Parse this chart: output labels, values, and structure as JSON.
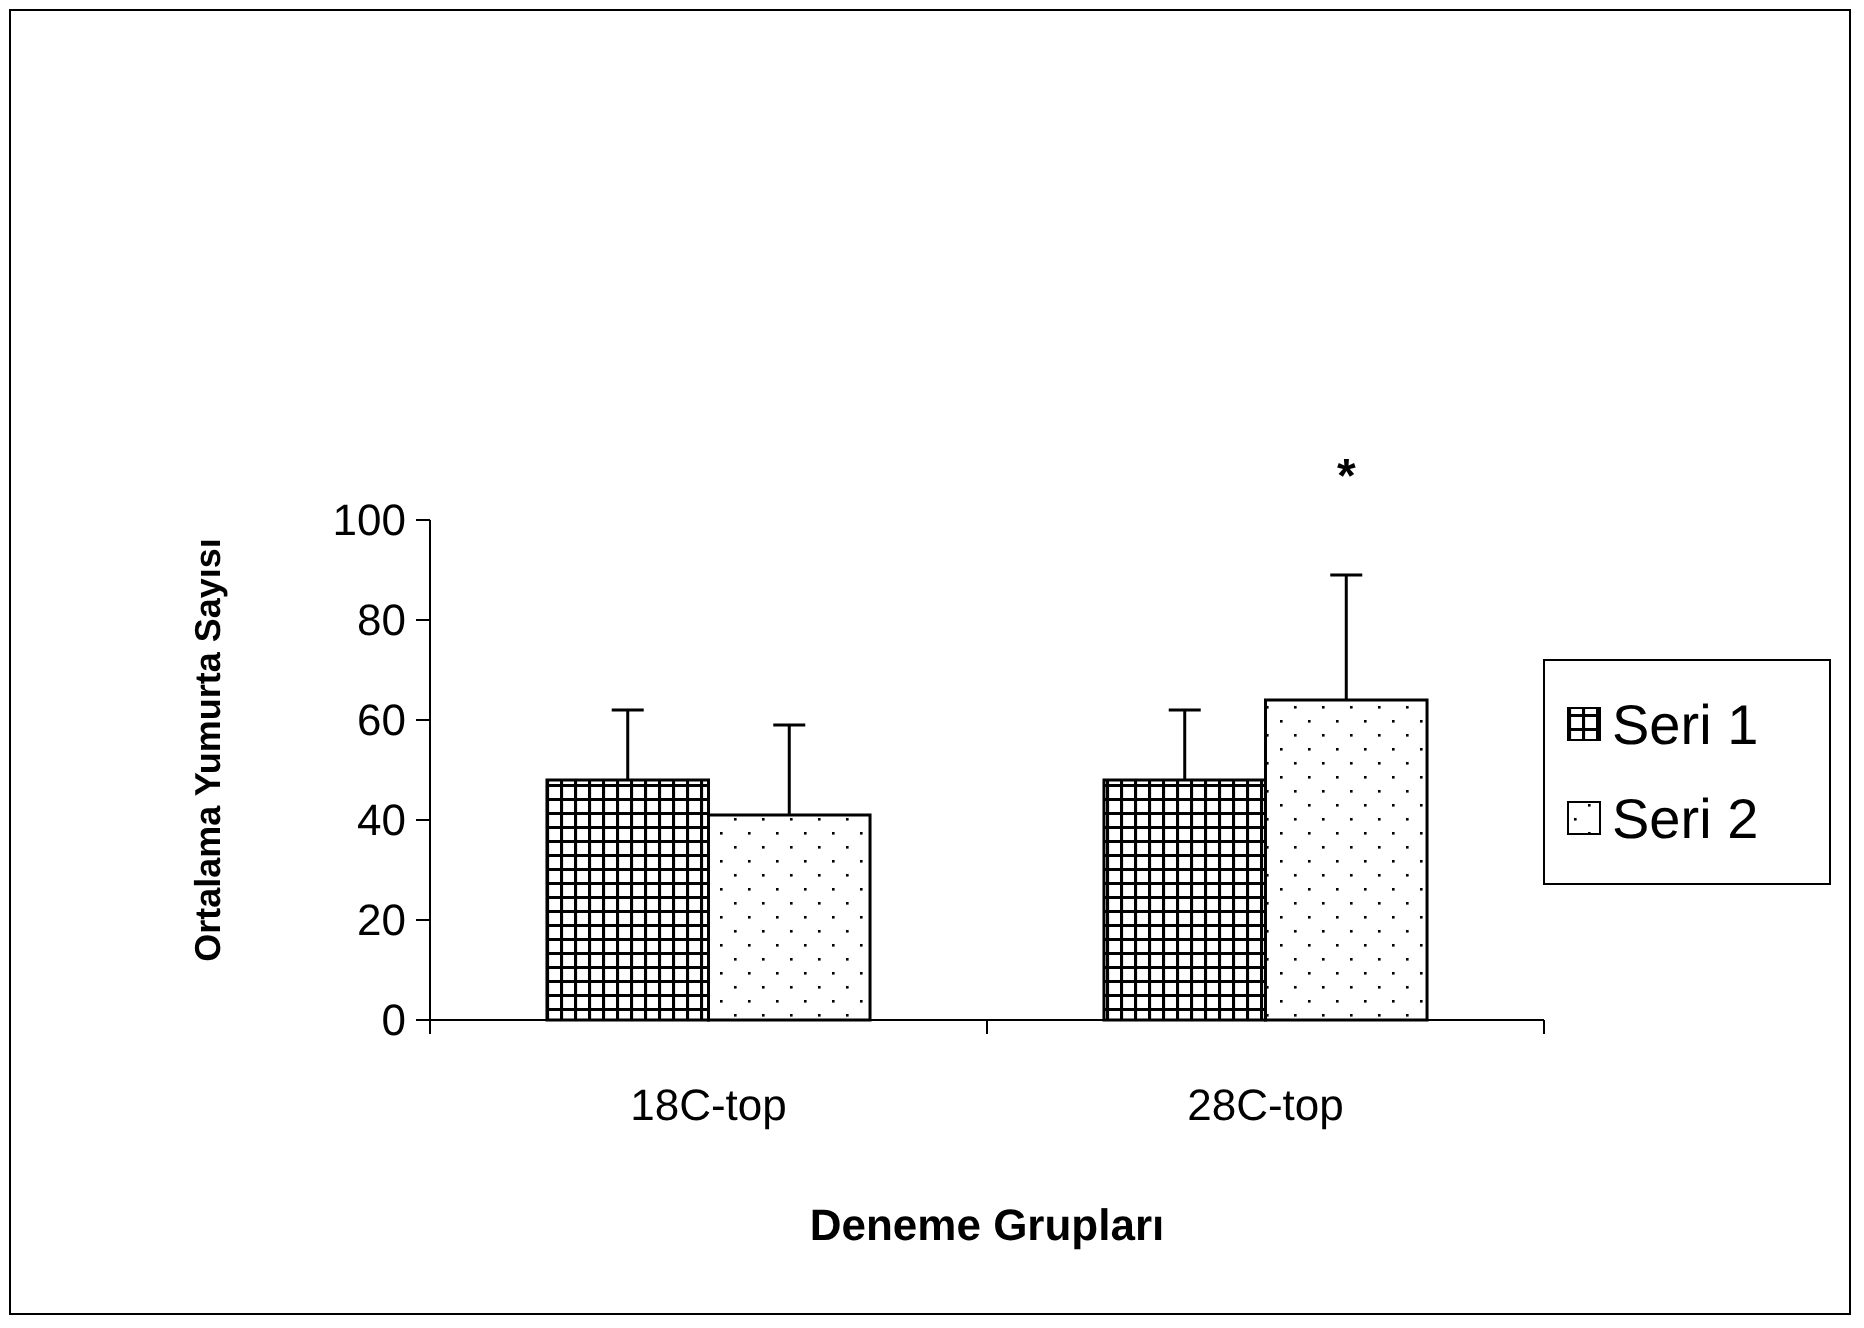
{
  "chart_data": {
    "type": "bar",
    "xlabel": "Deneme Grupları",
    "ylabel": "Ortalama Yumurta Sayısı",
    "categories": [
      "18C-top",
      "28C-top"
    ],
    "series": [
      {
        "name": "Seri 1",
        "color": "#000000",
        "values": [
          48,
          48
        ],
        "errors": [
          [
            48,
            62
          ],
          [
            48,
            62
          ]
        ]
      },
      {
        "name": "Seri 2",
        "color": "#000000",
        "values": [
          41,
          64
        ],
        "errors": [
          [
            41,
            59
          ],
          [
            64,
            89
          ]
        ]
      }
    ],
    "ylim": [
      0,
      100
    ],
    "yticks": [
      0,
      20,
      40,
      60,
      80,
      100
    ],
    "grid": false,
    "legend": "right",
    "annotations": [
      "*"
    ]
  }
}
